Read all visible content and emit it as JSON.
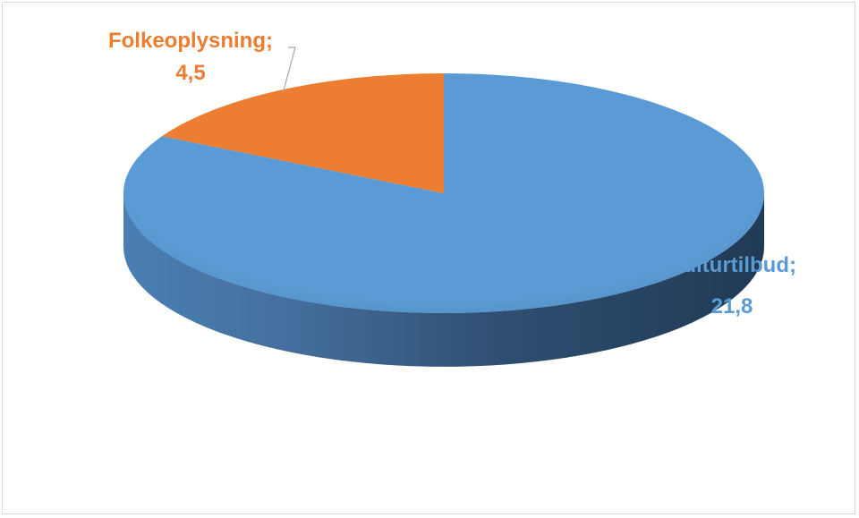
{
  "chart_data": {
    "type": "pie",
    "title": "",
    "slices": [
      {
        "label": "Kulturtilbud",
        "value": 21.8,
        "value_text": "21,8",
        "label_text": "Kulturtilbud;",
        "color": "#5b9bd5"
      },
      {
        "label": "Folkeoplysning",
        "value": 4.5,
        "value_text": "4,5",
        "label_text": "Folkeoplysning;",
        "color": "#ed7d31"
      }
    ],
    "style": "3d",
    "legend": "none"
  }
}
